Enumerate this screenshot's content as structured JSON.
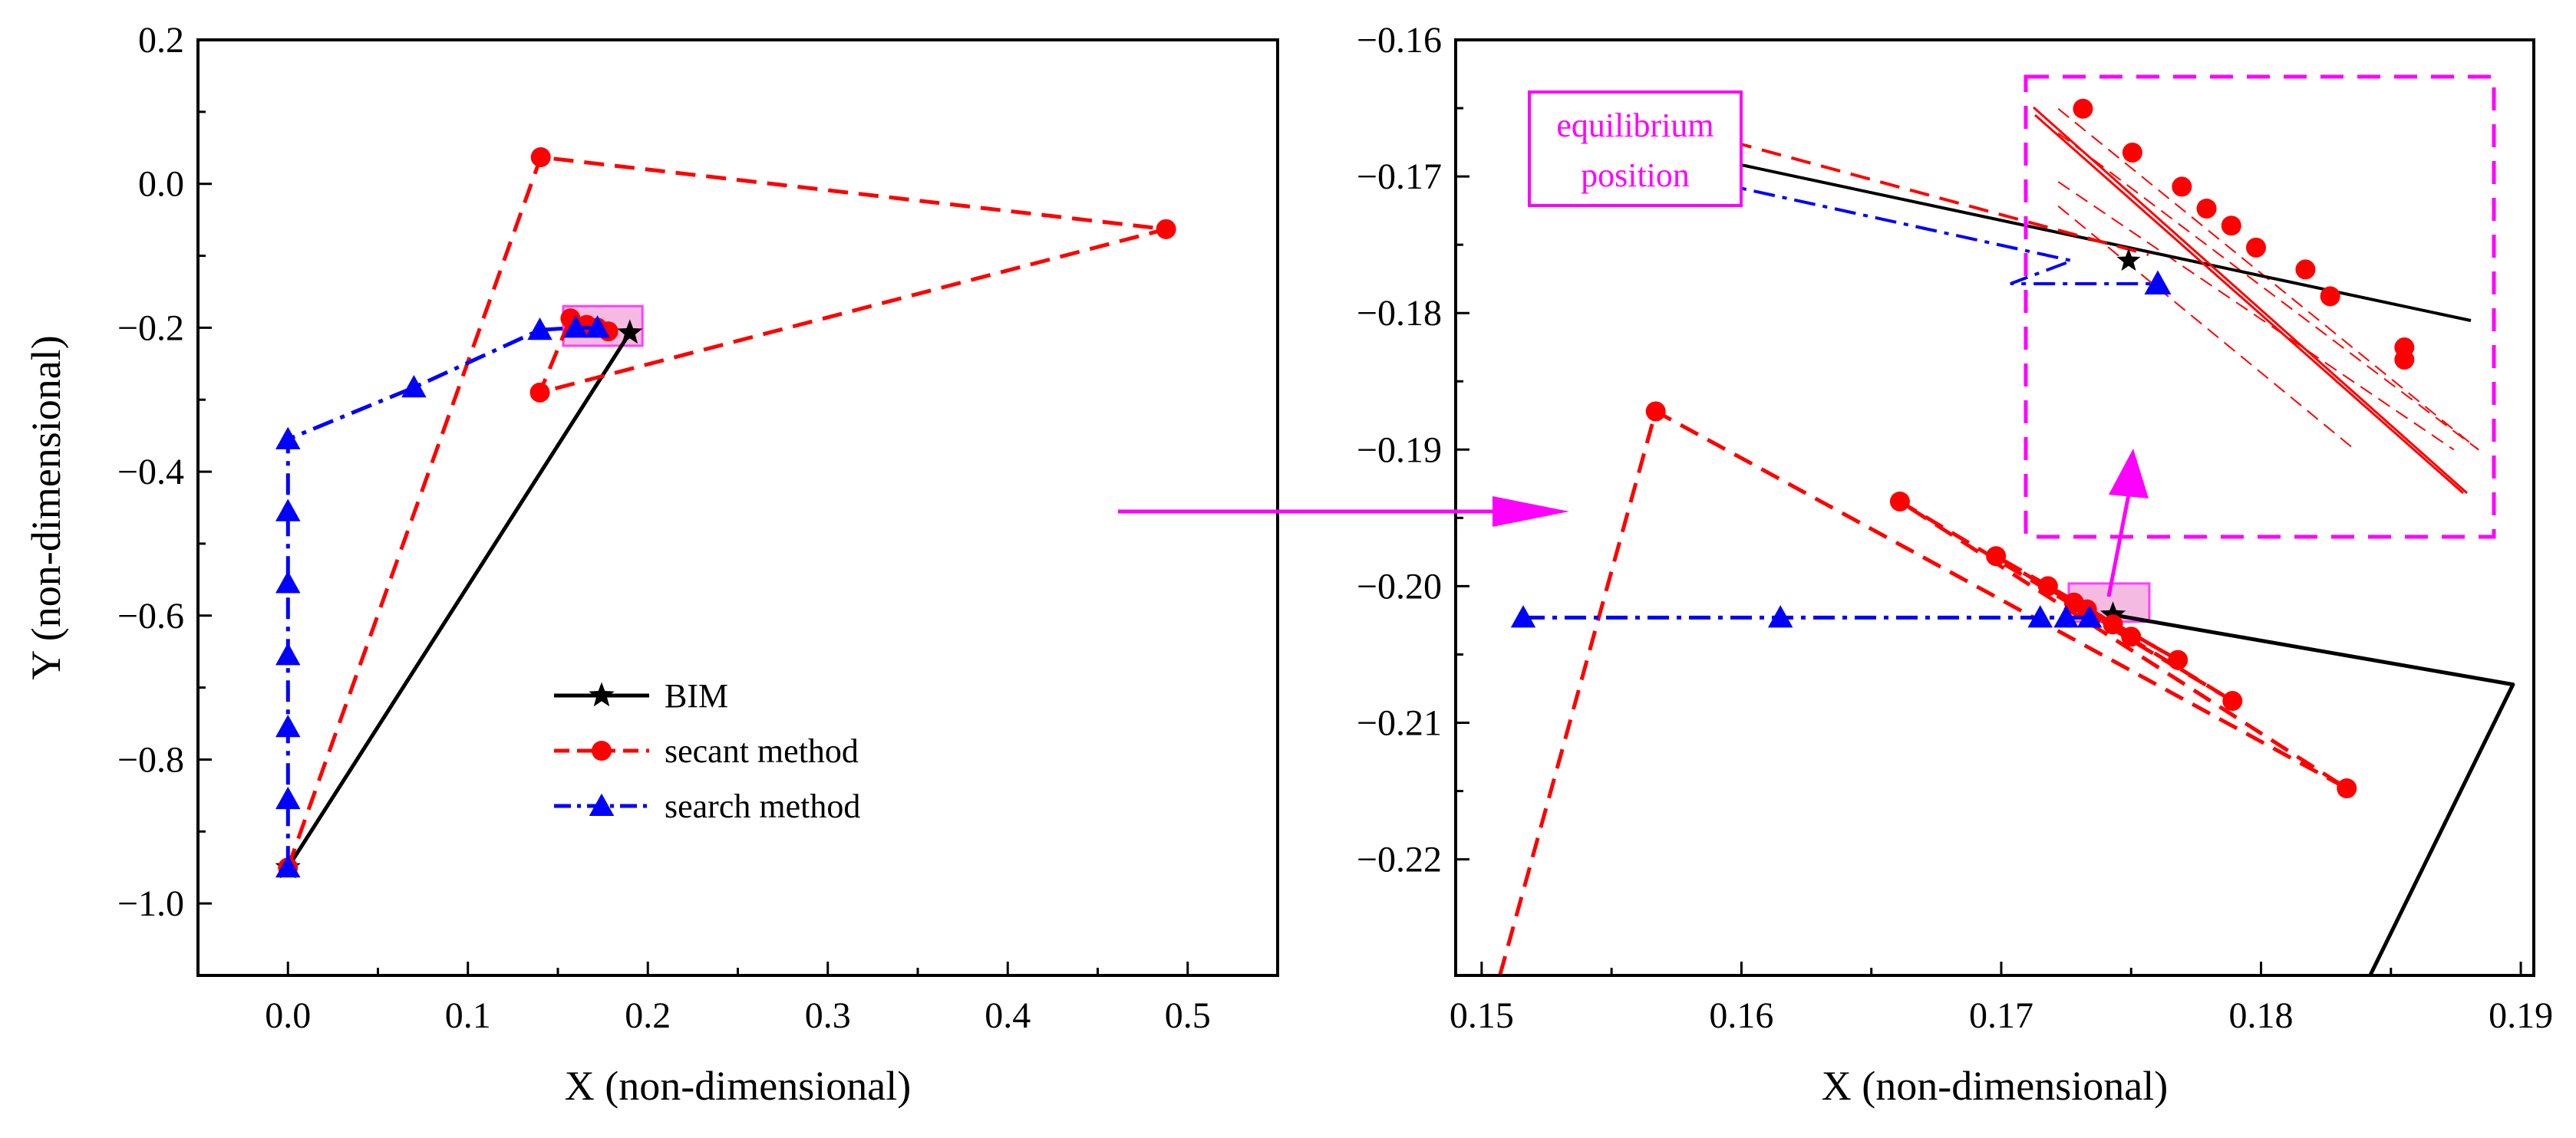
{
  "colors": {
    "bim": "#000000",
    "secant": "#ff0000",
    "search": "#0000ff",
    "highlight": "#ff00ff",
    "highlight_fill": "#f2a3d9"
  },
  "chart_data": [
    {
      "type": "line",
      "panel": "left",
      "xlabel": "X (non-dimensional)",
      "ylabel": "Y (non-dimensional)",
      "xlim": [
        -0.05,
        0.55
      ],
      "ylim": [
        -1.1,
        0.2
      ],
      "xticks": [
        0.0,
        0.1,
        0.2,
        0.3,
        0.4,
        0.5
      ],
      "xtick_labels": [
        "0.0",
        "0.1",
        "0.2",
        "0.3",
        "0.4",
        "0.5"
      ],
      "yticks": [
        -1.0,
        -0.8,
        -0.6,
        -0.4,
        -0.2,
        0.0,
        0.2
      ],
      "ytick_labels": [
        "−1.0",
        "−0.8",
        "−0.6",
        "−0.4",
        "−0.2",
        "0.0",
        "0.2"
      ],
      "legend": {
        "position": "lower-center",
        "entries": [
          {
            "label": "BIM",
            "series": "bim"
          },
          {
            "label": "secant method",
            "series": "secant"
          },
          {
            "label": "search method",
            "series": "search"
          }
        ]
      },
      "series": [
        {
          "name": "BIM",
          "key": "bim",
          "marker": "star",
          "dash": "solid",
          "markers_at": [
            0,
            1
          ],
          "points": [
            [
              0.0,
              -0.95
            ],
            [
              0.19,
              -0.207
            ]
          ]
        },
        {
          "name": "secant method",
          "key": "secant",
          "marker": "circle",
          "dash": "dashed",
          "markers_at": [
            0,
            1,
            2,
            3,
            4,
            5,
            6,
            7
          ],
          "points": [
            [
              0.0,
              -0.95
            ],
            [
              0.1405,
              0.037
            ],
            [
              0.488,
              -0.063
            ],
            [
              0.14,
              -0.29
            ],
            [
              0.157,
              -0.187
            ],
            [
              0.166,
              -0.196
            ],
            [
              0.172,
              -0.2
            ],
            [
              0.178,
              -0.205
            ]
          ]
        },
        {
          "name": "search method",
          "key": "search",
          "marker": "triangle",
          "dash": "dashdot",
          "markers_at": [
            0,
            1,
            2,
            3,
            4,
            5,
            6,
            7,
            8,
            9,
            10
          ],
          "points": [
            [
              0.0,
              -0.95
            ],
            [
              0.0,
              -0.855
            ],
            [
              0.0,
              -0.755
            ],
            [
              0.0,
              -0.655
            ],
            [
              0.0,
              -0.555
            ],
            [
              0.0,
              -0.455
            ],
            [
              0.0,
              -0.355
            ],
            [
              0.07,
              -0.283
            ],
            [
              0.14,
              -0.203
            ],
            [
              0.16,
              -0.2
            ],
            [
              0.172,
              -0.2
            ]
          ]
        }
      ],
      "highlight_box": {
        "x0": 0.153,
        "x1": 0.197,
        "y0": -0.225,
        "y1": -0.17
      }
    },
    {
      "type": "line",
      "panel": "right",
      "xlabel": "X (non-dimensional)",
      "ylabel": "",
      "xlim": [
        0.149,
        0.1905
      ],
      "ylim": [
        -0.2285,
        -0.16
      ],
      "xticks": [
        0.15,
        0.16,
        0.17,
        0.18,
        0.19
      ],
      "xtick_labels": [
        "0.15",
        "0.16",
        "0.17",
        "0.18",
        "0.19"
      ],
      "yticks": [
        -0.22,
        -0.21,
        -0.2,
        -0.19,
        -0.18,
        -0.17,
        -0.16
      ],
      "ytick_labels": [
        "−0.22",
        "−0.21",
        "−0.20",
        "−0.19",
        "−0.18",
        "−0.17",
        "−0.16"
      ],
      "annotations": [
        {
          "text_lines": [
            "equilibrium",
            "position"
          ],
          "target": "inset",
          "x": 0.1548,
          "y": -0.1641
        }
      ],
      "series": [
        {
          "name": "BIM",
          "key": "bim",
          "marker": "star",
          "dash": "solid",
          "markers_at": [
            2
          ],
          "points": [
            [
              0.1842,
              -0.2285
            ],
            [
              0.1897,
              -0.2072
            ],
            [
              0.1743,
              -0.2021
            ]
          ]
        },
        {
          "name": "secant method",
          "key": "secant",
          "marker": "circle",
          "dash": "dashed",
          "markers_at": [
            1,
            2,
            3,
            4,
            5,
            6,
            7,
            8,
            9,
            10,
            11
          ],
          "points": [
            [
              0.1507,
              -0.2285
            ],
            [
              0.1567,
              -0.1872
            ],
            [
              0.1833,
              -0.2148
            ],
            [
              0.1661,
              -0.1938
            ],
            [
              0.1789,
              -0.2084
            ],
            [
              0.1698,
              -0.1978
            ],
            [
              0.1768,
              -0.2054
            ],
            [
              0.1718,
              -0.2
            ],
            [
              0.175,
              -0.2037
            ],
            [
              0.1728,
              -0.2012
            ],
            [
              0.1743,
              -0.2028
            ],
            [
              0.1733,
              -0.2017
            ]
          ]
        },
        {
          "name": "search method",
          "key": "search",
          "marker": "triangle",
          "dash": "dashdot",
          "markers_at": [
            0,
            1,
            2,
            3,
            4
          ],
          "points": [
            [
              0.1516,
              -0.2023
            ],
            [
              0.1615,
              -0.2023
            ],
            [
              0.1715,
              -0.2023
            ],
            [
              0.1725,
              -0.2023
            ],
            [
              0.1734,
              -0.2023
            ]
          ]
        }
      ],
      "highlight_box": {
        "x0": 0.1726,
        "x1": 0.1757,
        "y0": -0.2026,
        "y1": -0.1998
      },
      "inset": {
        "zoom_of": "highlight_box",
        "xlim": [
          0.1728,
          0.1746
        ],
        "ylim": [
          -0.2031,
          -0.2014
        ],
        "series": [
          {
            "name": "BIM",
            "key": "bim",
            "marker": "star",
            "dash": "solid",
            "markers_at": [
              1
            ],
            "points": [
              [
                0.1728,
                -0.2014
              ],
              [
                0.1739,
                -0.2021
              ],
              [
                0.1745,
                -0.2024
              ]
            ]
          },
          {
            "name": "search method",
            "key": "search",
            "marker": "triangle",
            "dash": "dashdot",
            "markers_at": [
              1
            ],
            "points": [
              [
                0.1728,
                -0.2016
              ],
              [
                0.1739,
                -0.2024
              ]
            ]
          },
          {
            "name": "secant method",
            "key": "secant",
            "marker": "circle",
            "dash": "solid",
            "markers_at": [
              0,
              1,
              2,
              3,
              4,
              5,
              6,
              7,
              8,
              9
            ],
            "points": [
              [
                0.173,
                -0.2015
              ],
              [
                0.1732,
                -0.20168
              ],
              [
                0.1734,
                -0.20182
              ],
              [
                0.1735,
                -0.20191
              ],
              [
                0.1736,
                -0.20198
              ],
              [
                0.1737,
                -0.20207
              ],
              [
                0.1739,
                -0.20216
              ],
              [
                0.174,
                -0.20227
              ],
              [
                0.1743,
                -0.20248
              ],
              [
                0.1743,
                -0.20253
              ]
            ]
          }
        ]
      }
    }
  ]
}
